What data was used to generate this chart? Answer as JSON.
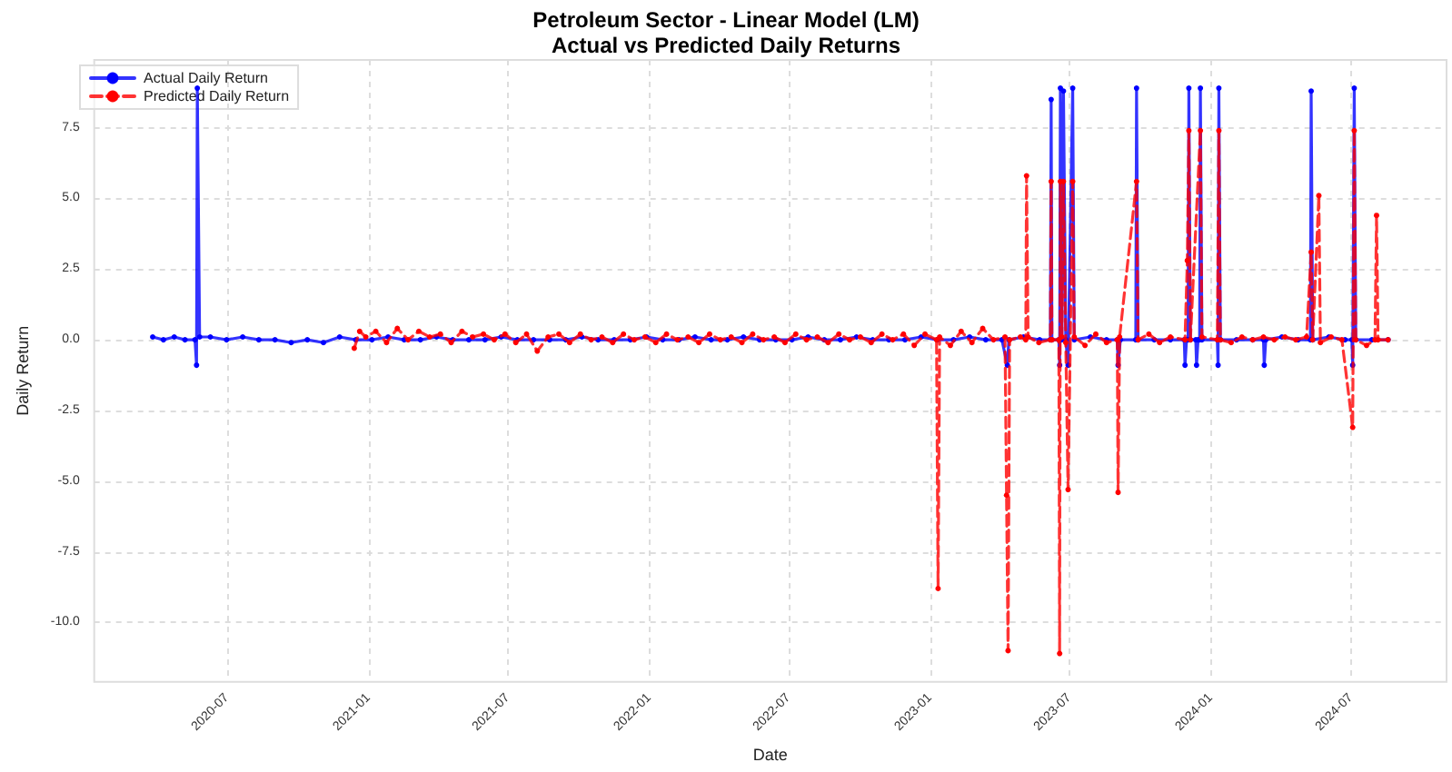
{
  "chart_data": {
    "type": "line",
    "title": "Petroleum Sector - Linear Model (LM)",
    "subtitle": "Actual vs Predicted Daily Returns",
    "xlabel": "Date",
    "ylabel": "Daily Return",
    "xlim": [
      "2020-01-10",
      "2024-11-02"
    ],
    "xticks": [
      {
        "value": "2020-07-01",
        "label": "2020-07"
      },
      {
        "value": "2021-01-01",
        "label": "2021-01"
      },
      {
        "value": "2021-07-01",
        "label": "2021-07"
      },
      {
        "value": "2022-01-01",
        "label": "2022-01"
      },
      {
        "value": "2022-07-01",
        "label": "2022-07"
      },
      {
        "value": "2023-01-01",
        "label": "2023-01"
      },
      {
        "value": "2023-07-01",
        "label": "2023-07"
      },
      {
        "value": "2024-01-01",
        "label": "2024-01"
      },
      {
        "value": "2024-07-01",
        "label": "2024-07"
      }
    ],
    "ylim": [
      -12.1,
      9.9
    ],
    "yticks": [
      {
        "value": -10,
        "label": "-10.0"
      },
      {
        "value": -7.5,
        "label": "-7.5"
      },
      {
        "value": -5,
        "label": "-5.0"
      },
      {
        "value": -2.5,
        "label": "-2.5"
      },
      {
        "value": 0,
        "label": "0.0"
      },
      {
        "value": 2.5,
        "label": "2.5"
      },
      {
        "value": 5,
        "label": "5.0"
      },
      {
        "value": 7.5,
        "label": "7.5"
      }
    ],
    "grid": true,
    "legend": "top left",
    "series": [
      {
        "name": "Actual Daily Return",
        "color": "#0000ff",
        "marker": "circle",
        "line_style": "solid",
        "x": [
          "2020-03-26",
          "2020-04-09",
          "2020-04-23",
          "2020-05-07",
          "2020-05-20",
          "2020-05-22",
          "2020-05-23",
          "2020-05-26",
          "2020-06-09",
          "2020-06-30",
          "2020-07-21",
          "2020-08-11",
          "2020-09-01",
          "2020-09-22",
          "2020-10-13",
          "2020-11-03",
          "2020-11-24",
          "2020-12-15",
          "2021-01-05",
          "2021-01-26",
          "2021-02-16",
          "2021-03-09",
          "2021-03-30",
          "2021-04-20",
          "2021-05-11",
          "2021-06-01",
          "2021-06-22",
          "2021-07-13",
          "2021-08-03",
          "2021-08-24",
          "2021-09-14",
          "2021-10-05",
          "2021-10-26",
          "2021-11-16",
          "2021-12-07",
          "2021-12-28",
          "2022-01-18",
          "2022-02-08",
          "2022-03-01",
          "2022-03-22",
          "2022-04-12",
          "2022-05-03",
          "2022-05-24",
          "2022-06-14",
          "2022-07-05",
          "2022-07-26",
          "2022-08-16",
          "2022-09-06",
          "2022-09-27",
          "2022-10-18",
          "2022-11-08",
          "2022-11-29",
          "2022-12-20",
          "2023-01-10",
          "2023-01-31",
          "2023-02-21",
          "2023-03-14",
          "2023-04-04",
          "2023-04-11",
          "2023-04-13",
          "2023-05-02",
          "2023-05-23",
          "2023-06-06",
          "2023-06-07",
          "2023-06-08",
          "2023-06-17",
          "2023-06-18",
          "2023-06-19",
          "2023-06-21",
          "2023-06-23",
          "2023-06-26",
          "2023-06-29",
          "2023-07-05",
          "2023-07-07",
          "2023-07-28",
          "2023-08-18",
          "2023-09-01",
          "2023-09-02",
          "2023-09-05",
          "2023-09-25",
          "2023-09-26",
          "2023-09-28",
          "2023-10-19",
          "2023-11-09",
          "2023-11-27",
          "2023-11-28",
          "2023-11-30",
          "2023-12-02",
          "2023-12-03",
          "2023-12-05",
          "2023-12-12",
          "2023-12-13",
          "2023-12-15",
          "2023-12-17",
          "2023-12-18",
          "2023-12-20",
          "2024-01-09",
          "2024-01-10",
          "2024-01-11",
          "2024-01-13",
          "2024-02-03",
          "2024-02-24",
          "2024-03-09",
          "2024-03-10",
          "2024-03-12",
          "2024-04-02",
          "2024-04-23",
          "2024-05-09",
          "2024-05-10",
          "2024-05-12",
          "2024-06-02",
          "2024-06-23",
          "2024-07-02",
          "2024-07-03",
          "2024-07-05",
          "2024-07-07",
          "2024-07-28",
          "2024-08-18"
        ],
        "values": [
          0.1,
          0.0,
          0.1,
          0.0,
          0.0,
          -0.9,
          8.9,
          0.1,
          0.1,
          0.0,
          0.1,
          0.0,
          0.0,
          -0.1,
          0.0,
          -0.1,
          0.1,
          0.0,
          0.0,
          0.1,
          0.0,
          0.0,
          0.1,
          0.0,
          0.0,
          0.0,
          0.1,
          0.0,
          0.0,
          0.0,
          0.0,
          0.1,
          0.0,
          0.0,
          0.0,
          0.1,
          0.0,
          0.0,
          0.1,
          0.0,
          0.0,
          0.1,
          0.0,
          0.0,
          0.0,
          0.1,
          0.0,
          0.0,
          0.1,
          0.0,
          0.0,
          0.0,
          0.1,
          0.0,
          0.0,
          0.1,
          0.0,
          0.0,
          -0.9,
          0.0,
          0.1,
          0.0,
          0.0,
          8.5,
          0.0,
          0.0,
          -0.9,
          8.9,
          0.0,
          8.8,
          0.0,
          -0.9,
          8.9,
          0.0,
          0.1,
          0.0,
          0.0,
          -0.9,
          0.0,
          0.0,
          8.9,
          0.0,
          0.0,
          0.0,
          0.0,
          -0.9,
          0.0,
          0.0,
          8.9,
          0.0,
          0.0,
          -0.9,
          0.0,
          0.0,
          8.9,
          0.0,
          0.0,
          -0.9,
          8.9,
          0.0,
          0.0,
          0.0,
          0.0,
          -0.9,
          0.0,
          0.1,
          0.0,
          0.0,
          8.8,
          0.0,
          0.1,
          0.0,
          0.0,
          -0.9,
          8.9,
          0.0,
          0.0,
          0.0
        ]
      },
      {
        "name": "Predicted Daily Return",
        "color": "#ff0000",
        "marker": "circle",
        "line_style": "dashed",
        "x": [
          "2020-12-13",
          "2020-12-20",
          "2020-12-28",
          "2021-01-10",
          "2021-01-24",
          "2021-02-07",
          "2021-02-21",
          "2021-03-07",
          "2021-03-21",
          "2021-04-04",
          "2021-04-18",
          "2021-05-02",
          "2021-05-16",
          "2021-05-30",
          "2021-06-13",
          "2021-06-27",
          "2021-07-11",
          "2021-07-25",
          "2021-08-08",
          "2021-08-22",
          "2021-09-05",
          "2021-09-19",
          "2021-10-03",
          "2021-10-17",
          "2021-10-31",
          "2021-11-14",
          "2021-11-28",
          "2021-12-12",
          "2021-12-26",
          "2022-01-09",
          "2022-01-23",
          "2022-02-06",
          "2022-02-20",
          "2022-03-06",
          "2022-03-20",
          "2022-04-03",
          "2022-04-17",
          "2022-05-01",
          "2022-05-15",
          "2022-05-29",
          "2022-06-12",
          "2022-06-26",
          "2022-07-10",
          "2022-07-24",
          "2022-08-07",
          "2022-08-21",
          "2022-09-04",
          "2022-09-18",
          "2022-10-02",
          "2022-10-16",
          "2022-10-30",
          "2022-11-13",
          "2022-11-27",
          "2022-12-11",
          "2022-12-25",
          "2023-01-09",
          "2023-01-11",
          "2023-01-13",
          "2023-01-27",
          "2023-02-10",
          "2023-02-24",
          "2023-03-10",
          "2023-03-24",
          "2023-04-08",
          "2023-04-10",
          "2023-04-12",
          "2023-04-14",
          "2023-04-28",
          "2023-05-05",
          "2023-05-06",
          "2023-05-08",
          "2023-05-22",
          "2023-06-06",
          "2023-06-07",
          "2023-06-08",
          "2023-06-17",
          "2023-06-18",
          "2023-06-19",
          "2023-06-21",
          "2023-06-23",
          "2023-06-26",
          "2023-06-29",
          "2023-07-05",
          "2023-07-07",
          "2023-07-21",
          "2023-08-04",
          "2023-08-18",
          "2023-09-01",
          "2023-09-02",
          "2023-09-04",
          "2023-09-26",
          "2023-09-28",
          "2023-10-12",
          "2023-10-26",
          "2023-11-09",
          "2023-11-28",
          "2023-12-01",
          "2023-12-03",
          "2023-12-05",
          "2023-12-18",
          "2023-12-20",
          "2024-01-09",
          "2024-01-11",
          "2024-01-13",
          "2024-01-27",
          "2024-02-10",
          "2024-02-24",
          "2024-03-09",
          "2024-03-23",
          "2024-04-06",
          "2024-04-20",
          "2024-05-04",
          "2024-05-10",
          "2024-05-12",
          "2024-05-20",
          "2024-05-22",
          "2024-06-05",
          "2024-06-19",
          "2024-07-03",
          "2024-07-05",
          "2024-07-07",
          "2024-07-21",
          "2024-08-01",
          "2024-08-03",
          "2024-08-05",
          "2024-08-18"
        ],
        "values": [
          -0.3,
          0.3,
          0.1,
          0.3,
          -0.1,
          0.4,
          0.0,
          0.3,
          0.1,
          0.2,
          -0.1,
          0.3,
          0.1,
          0.2,
          0.0,
          0.2,
          -0.1,
          0.2,
          -0.4,
          0.1,
          0.2,
          -0.1,
          0.2,
          0.0,
          0.1,
          -0.1,
          0.2,
          0.0,
          0.1,
          -0.1,
          0.2,
          0.0,
          0.1,
          -0.1,
          0.2,
          0.0,
          0.1,
          -0.1,
          0.2,
          0.0,
          0.1,
          -0.1,
          0.2,
          0.0,
          0.1,
          -0.1,
          0.2,
          0.0,
          0.1,
          -0.1,
          0.2,
          0.0,
          0.2,
          -0.2,
          0.2,
          0.0,
          -8.8,
          0.1,
          -0.2,
          0.3,
          -0.1,
          0.4,
          0.0,
          0.1,
          -5.5,
          -11.0,
          0.0,
          0.1,
          0.0,
          5.8,
          0.1,
          -0.1,
          0.0,
          5.6,
          0.0,
          0.0,
          -11.1,
          5.6,
          0.1,
          5.6,
          -0.1,
          -5.3,
          5.6,
          0.1,
          -0.2,
          0.2,
          -0.1,
          0.0,
          -5.4,
          0.1,
          5.6,
          0.0,
          0.2,
          -0.1,
          0.1,
          0.0,
          2.8,
          7.4,
          0.0,
          7.4,
          0.1,
          0.0,
          7.4,
          0.0,
          -0.1,
          0.1,
          0.0,
          0.1,
          0.0,
          0.1,
          0.0,
          0.1,
          3.1,
          0.0,
          5.1,
          -0.1,
          0.1,
          0.0,
          -3.1,
          7.4,
          0.0,
          -0.2,
          0.0,
          4.4,
          0.0,
          0.0
        ]
      }
    ]
  }
}
